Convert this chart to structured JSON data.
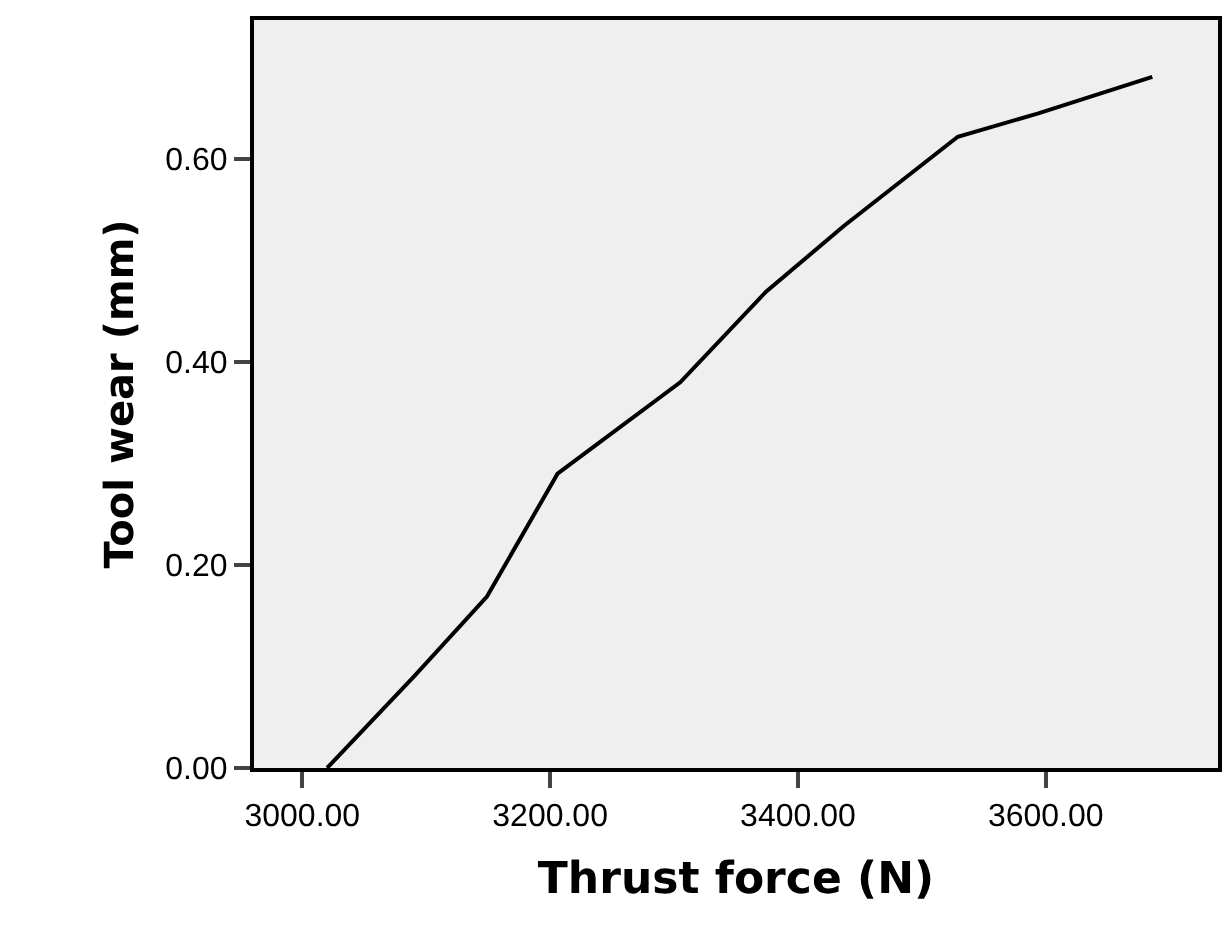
{
  "chart_data": {
    "type": "line",
    "xlabel": "Thrust force (N)",
    "ylabel": "Tool wear (mm)",
    "x": [
      3020,
      3090,
      3149,
      3206,
      3305,
      3374,
      3437,
      3529,
      3594,
      3686
    ],
    "series": [
      {
        "color": "#000000",
        "values": [
          0,
          0.09,
          0.169,
          0.29,
          0.38,
          0.469,
          0.534,
          0.622,
          0.645,
          0.681
        ]
      }
    ],
    "xlim": [
      2961,
      3739
    ],
    "xticks": [
      {
        "value": 3000,
        "label": "3000.00"
      },
      {
        "value": 3200,
        "label": "3200.00"
      },
      {
        "value": 3400,
        "label": "3400.00"
      },
      {
        "value": 3600,
        "label": "3600.00"
      }
    ],
    "ylim": [
      0,
      0.737
    ],
    "yticks": [
      {
        "value": 0,
        "label": "0.00"
      },
      {
        "value": 0.2,
        "label": "0.20"
      },
      {
        "value": 0.4,
        "label": "0.40"
      },
      {
        "value": 0.6,
        "label": "0.60"
      }
    ],
    "grid": false,
    "marker": "none",
    "line_style": "solid"
  }
}
